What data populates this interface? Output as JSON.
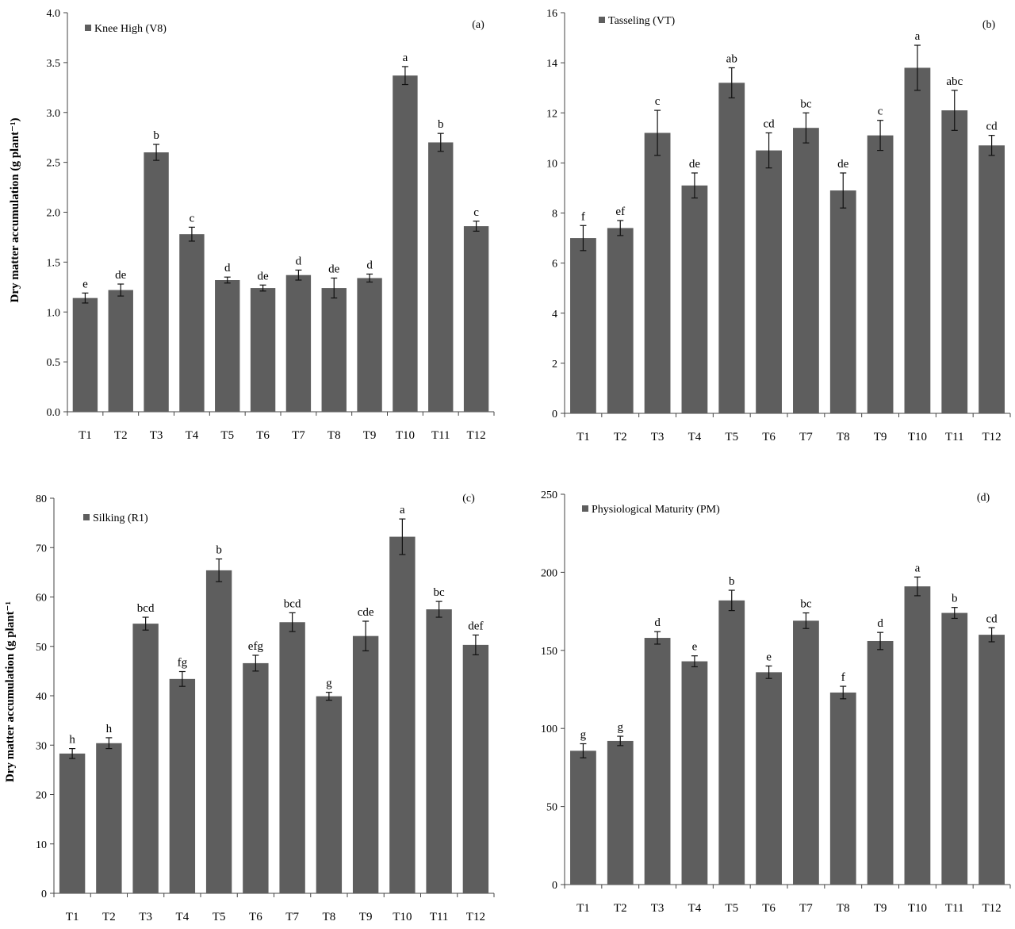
{
  "y_axis_label_top": "Dry matter accumulation (g plant⁻¹)",
  "y_axis_label_bottom": "Dry matter accumulation (g plant⁻¹",
  "chart_data": [
    {
      "type": "bar",
      "panel": "(a)",
      "categories": [
        "T1",
        "T2",
        "T3",
        "T4",
        "T5",
        "T6",
        "T7",
        "T8",
        "T9",
        "T10",
        "T11",
        "T12"
      ],
      "series": [
        {
          "name": "Knee High (V8)",
          "values": [
            1.14,
            1.22,
            2.6,
            1.78,
            1.32,
            1.24,
            1.37,
            1.24,
            1.34,
            3.37,
            2.7,
            1.86
          ],
          "errors": [
            0.05,
            0.06,
            0.08,
            0.07,
            0.03,
            0.03,
            0.05,
            0.1,
            0.04,
            0.09,
            0.09,
            0.05
          ],
          "letters": [
            "e",
            "de",
            "b",
            "c",
            "d",
            "de",
            "d",
            "de",
            "d",
            "a",
            "b",
            "c"
          ]
        }
      ],
      "ylim": [
        0,
        4
      ],
      "yticks": [
        "0.0",
        "0.5",
        "1.0",
        "1.5",
        "2.0",
        "2.5",
        "3.0",
        "3.5",
        "4.0"
      ],
      "ylabel": "Dry matter accumulation (g plant⁻¹)",
      "legend_position": "top-left",
      "bar_color": "#5e5e5e"
    },
    {
      "type": "bar",
      "panel": "(b)",
      "categories": [
        "T1",
        "T2",
        "T3",
        "T4",
        "T5",
        "T6",
        "T7",
        "T8",
        "T9",
        "T10",
        "T11",
        "T12"
      ],
      "series": [
        {
          "name": "Tasseling (VT)",
          "values": [
            7.0,
            7.4,
            11.2,
            9.1,
            13.2,
            10.5,
            11.4,
            8.9,
            11.1,
            13.8,
            12.1,
            10.7
          ],
          "errors": [
            0.5,
            0.3,
            0.9,
            0.5,
            0.6,
            0.7,
            0.6,
            0.7,
            0.6,
            0.9,
            0.8,
            0.4
          ],
          "letters": [
            "f",
            "ef",
            "c",
            "de",
            "ab",
            "cd",
            "bc",
            "de",
            "c",
            "a",
            "abc",
            "cd"
          ]
        }
      ],
      "ylim": [
        0,
        16
      ],
      "yticks": [
        "0",
        "2",
        "4",
        "6",
        "8",
        "10",
        "12",
        "14",
        "16"
      ],
      "ylabel": "",
      "legend_position": "top-left",
      "bar_color": "#5e5e5e"
    },
    {
      "type": "bar",
      "panel": "(c)",
      "categories": [
        "T1",
        "T2",
        "T3",
        "T4",
        "T5",
        "T6",
        "T7",
        "T8",
        "T9",
        "T10",
        "T11",
        "T12"
      ],
      "series": [
        {
          "name": "Silking (R1)",
          "values": [
            28.3,
            30.4,
            54.6,
            43.4,
            65.4,
            46.6,
            54.9,
            39.9,
            52.1,
            72.2,
            57.5,
            50.3
          ],
          "errors": [
            1.0,
            1.1,
            1.3,
            1.5,
            2.3,
            1.6,
            1.9,
            0.8,
            3.0,
            3.6,
            1.6,
            2.0
          ],
          "letters": [
            "h",
            "h",
            "bcd",
            "fg",
            "b",
            "efg",
            "bcd",
            "g",
            "cde",
            "a",
            "bc",
            "def"
          ]
        }
      ],
      "ylim": [
        0,
        80
      ],
      "yticks": [
        "0",
        "10",
        "20",
        "30",
        "40",
        "50",
        "60",
        "70",
        "80"
      ],
      "ylabel": "Dry matter accumulation (g plant⁻¹",
      "legend_position": "top-left",
      "bar_color": "#5e5e5e"
    },
    {
      "type": "bar",
      "panel": "(d)",
      "categories": [
        "T1",
        "T2",
        "T3",
        "T4",
        "T5",
        "T6",
        "T7",
        "T8",
        "T9",
        "T10",
        "T11",
        "T12"
      ],
      "series": [
        {
          "name": "Physiological Maturity (PM)",
          "values": [
            85.7,
            92,
            158,
            143,
            182,
            136,
            169,
            123,
            156,
            191,
            174,
            160
          ],
          "errors": [
            4.5,
            3,
            4,
            3.5,
            6.5,
            4,
            5,
            4,
            5.5,
            6,
            3.5,
            4.5
          ],
          "letters": [
            "g",
            "g",
            "d",
            "e",
            "b",
            "e",
            "bc",
            "f",
            "d",
            "a",
            "b",
            "cd"
          ]
        }
      ],
      "ylim": [
        0,
        250
      ],
      "yticks": [
        "0",
        "50",
        "100",
        "150",
        "200",
        "250"
      ],
      "ylabel": "",
      "legend_position": "top-left",
      "bar_color": "#5e5e5e"
    }
  ]
}
